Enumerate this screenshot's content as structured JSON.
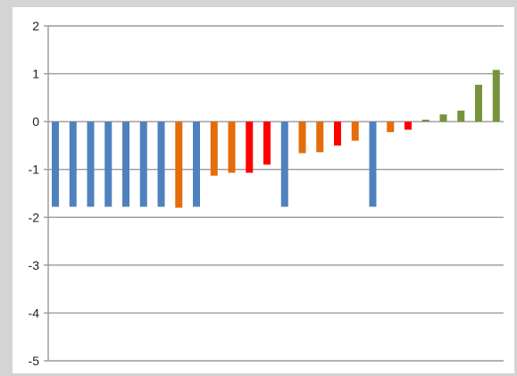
{
  "chart_data": {
    "type": "bar",
    "title": "",
    "xlabel": "",
    "ylabel": "",
    "ylim": [
      -5,
      2
    ],
    "yticks": [
      "2",
      "1",
      "0",
      "-1",
      "-2",
      "-3",
      "-4",
      "-5"
    ],
    "grid": true,
    "legend": "none",
    "bars": [
      {
        "value": -1.78,
        "color": "#4f81bd"
      },
      {
        "value": -1.78,
        "color": "#4f81bd"
      },
      {
        "value": -1.78,
        "color": "#4f81bd"
      },
      {
        "value": -1.78,
        "color": "#4f81bd"
      },
      {
        "value": -1.78,
        "color": "#4f81bd"
      },
      {
        "value": -1.78,
        "color": "#4f81bd"
      },
      {
        "value": -1.78,
        "color": "#4f81bd"
      },
      {
        "value": -1.8,
        "color": "#e46c0a"
      },
      {
        "value": -1.78,
        "color": "#4f81bd"
      },
      {
        "value": -1.13,
        "color": "#e46c0a"
      },
      {
        "value": -1.07,
        "color": "#e46c0a"
      },
      {
        "value": -1.07,
        "color": "#ff0000"
      },
      {
        "value": -0.9,
        "color": "#ff0000"
      },
      {
        "value": -1.78,
        "color": "#4f81bd"
      },
      {
        "value": -0.66,
        "color": "#e46c0a"
      },
      {
        "value": -0.64,
        "color": "#e46c0a"
      },
      {
        "value": -0.5,
        "color": "#ff0000"
      },
      {
        "value": -0.4,
        "color": "#e46c0a"
      },
      {
        "value": -1.78,
        "color": "#4f81bd"
      },
      {
        "value": -0.22,
        "color": "#e46c0a"
      },
      {
        "value": -0.17,
        "color": "#ff0000"
      },
      {
        "value": 0.04,
        "color": "#77933c"
      },
      {
        "value": 0.15,
        "color": "#77933c"
      },
      {
        "value": 0.23,
        "color": "#77933c"
      },
      {
        "value": 0.77,
        "color": "#77933c"
      },
      {
        "value": 1.08,
        "color": "#77933c"
      }
    ]
  }
}
